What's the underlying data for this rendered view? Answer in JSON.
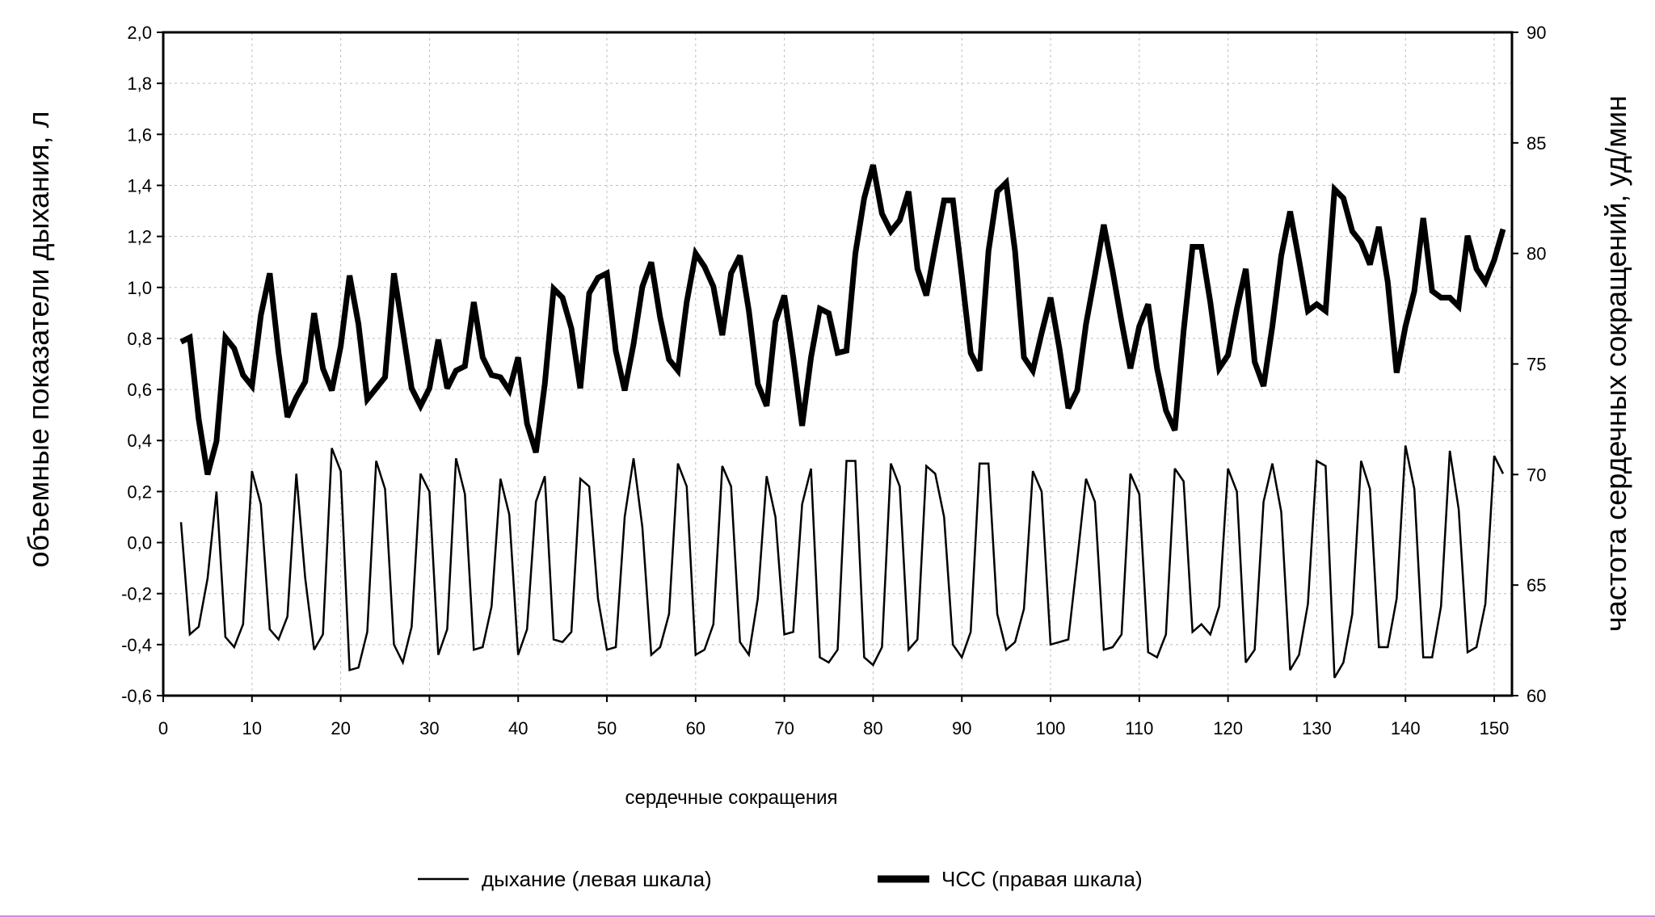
{
  "chart_data": {
    "type": "line",
    "xlabel": "сердечные сокращения",
    "ylabel_left": "объемные показатели дыхания, л",
    "ylabel_right": "частота сердечных сокращений, уд/мин",
    "xlim": [
      0,
      152
    ],
    "ylim_left": [
      -0.6,
      2.0
    ],
    "ylim_right": [
      60,
      90
    ],
    "x_ticks": [
      "0",
      "10",
      "20",
      "30",
      "40",
      "50",
      "60",
      "70",
      "80",
      "90",
      "100",
      "110",
      "120",
      "130",
      "140",
      "150"
    ],
    "y_left_ticks": [
      "-0,6",
      "-0,4",
      "-0,2",
      "0,0",
      "0,2",
      "0,4",
      "0,6",
      "0,8",
      "1,0",
      "1,2",
      "1,4",
      "1,6",
      "1,8",
      "2,0"
    ],
    "y_right_ticks": [
      "60",
      "65",
      "70",
      "75",
      "80",
      "85",
      "90"
    ],
    "grid": true,
    "legend_position": "bottom",
    "legend": [
      "дыхание (левая шкала)",
      "ЧСС (правая шкала)"
    ],
    "series": [
      {
        "name": "дыхание (левая шкала)",
        "axis": "left",
        "line_width": 2.5,
        "values": [
          0.08,
          -0.36,
          -0.33,
          -0.14,
          0.2,
          -0.37,
          -0.41,
          -0.32,
          0.28,
          0.15,
          -0.34,
          -0.38,
          -0.29,
          0.27,
          -0.14,
          -0.42,
          -0.36,
          0.37,
          0.28,
          -0.5,
          -0.49,
          -0.35,
          0.32,
          0.21,
          -0.4,
          -0.47,
          -0.33,
          0.27,
          0.2,
          -0.44,
          -0.34,
          0.33,
          0.19,
          -0.42,
          -0.41,
          -0.25,
          0.25,
          0.11,
          -0.44,
          -0.34,
          0.16,
          0.26,
          -0.38,
          -0.39,
          -0.35,
          0.25,
          0.22,
          -0.22,
          -0.42,
          -0.41,
          0.1,
          0.33,
          0.06,
          -0.44,
          -0.41,
          -0.28,
          0.31,
          0.22,
          -0.44,
          -0.42,
          -0.32,
          0.3,
          0.22,
          -0.39,
          -0.44,
          -0.22,
          0.26,
          0.1,
          -0.36,
          -0.35,
          0.15,
          0.29,
          -0.45,
          -0.47,
          -0.42,
          0.32,
          0.32,
          -0.45,
          -0.48,
          -0.41,
          0.31,
          0.22,
          -0.42,
          -0.38,
          0.3,
          0.27,
          0.1,
          -0.4,
          -0.45,
          -0.35,
          0.31,
          0.31,
          -0.28,
          -0.42,
          -0.39,
          -0.26,
          0.28,
          0.2,
          -0.4,
          -0.39,
          -0.38,
          -0.07,
          0.25,
          0.16,
          -0.42,
          -0.41,
          -0.36,
          0.27,
          0.19,
          -0.43,
          -0.45,
          -0.36,
          0.29,
          0.24,
          -0.35,
          -0.32,
          -0.36,
          -0.25,
          0.29,
          0.2,
          -0.47,
          -0.42,
          0.16,
          0.31,
          0.12,
          -0.5,
          -0.44,
          -0.24,
          0.32,
          0.3,
          -0.53,
          -0.47,
          -0.28,
          0.32,
          0.21,
          -0.41,
          -0.41,
          -0.22,
          0.38,
          0.21,
          -0.45,
          -0.45,
          -0.25,
          0.36,
          0.13,
          -0.43,
          -0.41,
          -0.24,
          0.34,
          0.27
        ]
      },
      {
        "name": "ЧСС (правая шкала)",
        "axis": "right",
        "line_width": 7,
        "values": [
          76,
          76.2,
          72.5,
          70,
          71.5,
          76.2,
          75.7,
          74.5,
          74,
          77.2,
          79.1,
          75.5,
          72.6,
          73.5,
          74.2,
          77.3,
          74.8,
          73.8,
          75.8,
          79,
          76.8,
          73.4,
          73.9,
          74.4,
          79.1,
          76.5,
          73.9,
          73.1,
          73.9,
          76.1,
          73.9,
          74.7,
          74.9,
          77.8,
          75.3,
          74.5,
          74.4,
          73.8,
          75.3,
          72.3,
          71,
          74.1,
          78.4,
          78,
          76.6,
          73.9,
          78.2,
          78.9,
          79.1,
          75.6,
          73.8,
          75.9,
          78.5,
          79.6,
          77.1,
          75.2,
          74.7,
          77.8,
          80,
          79.4,
          78.5,
          76.3,
          79.1,
          79.9,
          77.4,
          74.1,
          73.1,
          76.9,
          78.1,
          75.3,
          72.2,
          75.3,
          77.5,
          77.3,
          75.5,
          75.6,
          80,
          82.5,
          84,
          81.8,
          81,
          81.5,
          82.8,
          79.3,
          78.1,
          80.3,
          82.4,
          82.4,
          79,
          75.5,
          74.7,
          80.1,
          82.8,
          83.2,
          80.1,
          75.3,
          74.7,
          76.4,
          78,
          75.7,
          73,
          73.8,
          76.8,
          79,
          81.3,
          79.2,
          76.9,
          74.8,
          76.7,
          77.7,
          74.8,
          72.9,
          72,
          76.5,
          80.3,
          80.3,
          77.8,
          74.8,
          75.4,
          77.5,
          79.3,
          75.1,
          74,
          76.7,
          79.9,
          81.9,
          79.7,
          77.4,
          77.7,
          77.4,
          82.9,
          82.5,
          81,
          80.5,
          79.5,
          81.2,
          78.7,
          74.6,
          76.7,
          78.3,
          81.6,
          78.3,
          78,
          78,
          77.6,
          80.8,
          79.3,
          78.7,
          79.7,
          81.1
        ]
      }
    ]
  }
}
